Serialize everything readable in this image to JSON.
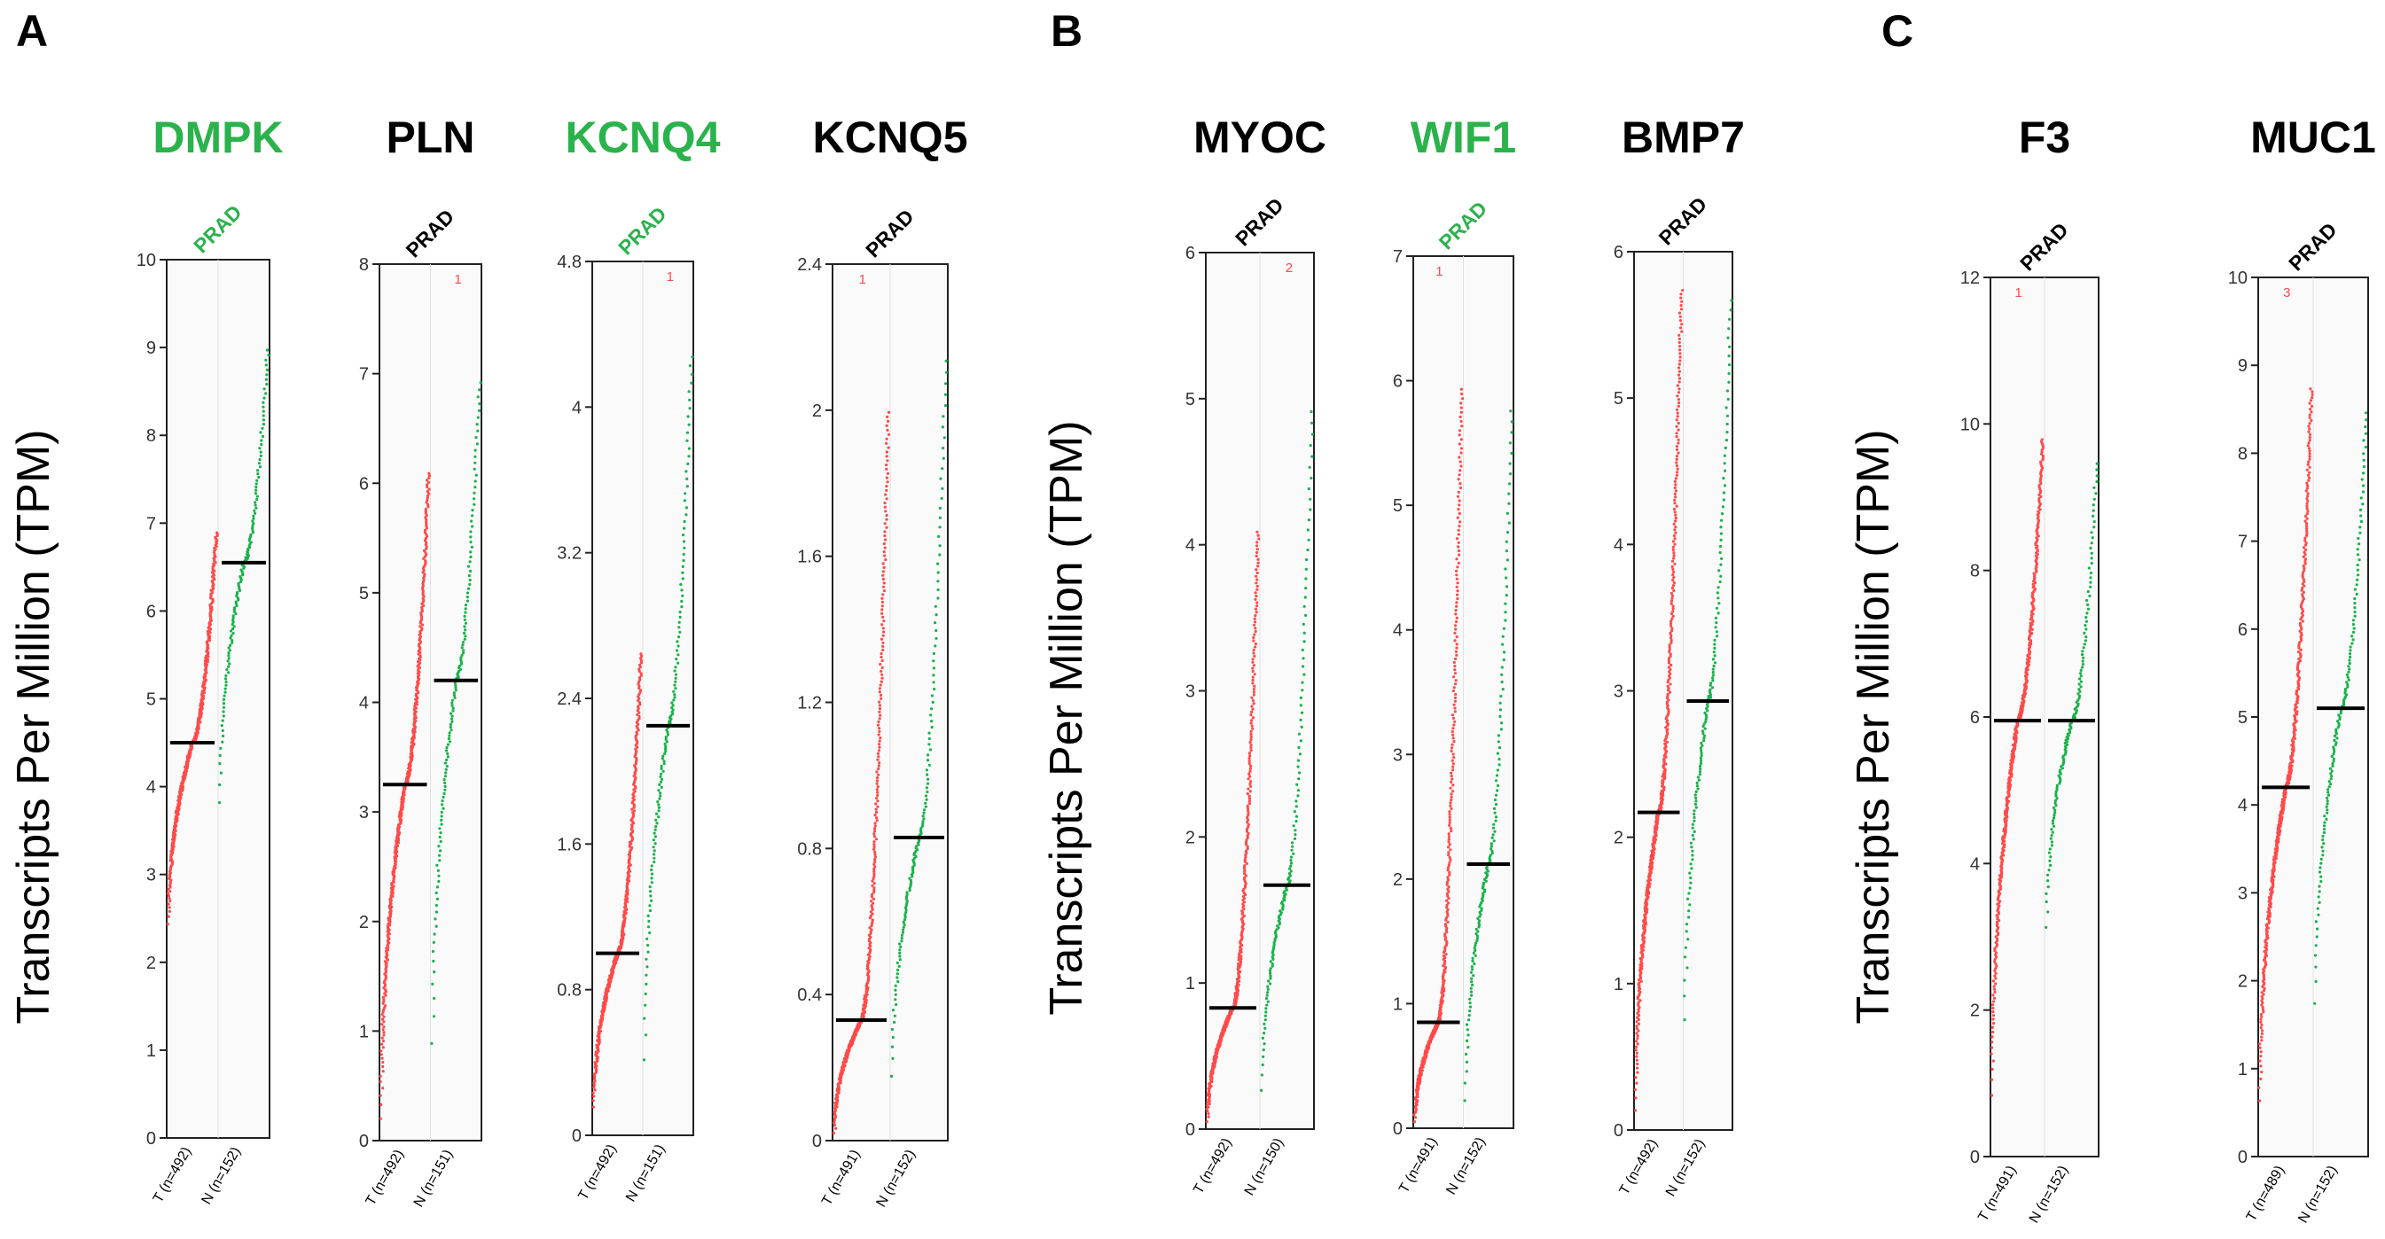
{
  "figure": {
    "panels": [
      {
        "letter": "A",
        "y_axis_label": "Transcripts Per Million (TPM)"
      },
      {
        "letter": "B",
        "y_axis_label": "Transcripts Per Million (TPM)"
      },
      {
        "letter": "C",
        "y_axis_label": "Transcripts Per Million (TPM)"
      }
    ]
  },
  "colors": {
    "tumor": "#ff4a4a",
    "normal": "#19b24b",
    "highlight_gene": "#2bb24c",
    "default_gene": "#000000",
    "median": "#000000"
  },
  "chart_data": [
    {
      "type": "scatter",
      "panel": "A",
      "gene": "DMPK",
      "gene_highlighted": true,
      "cancer": "PRAD",
      "ylim": [
        0,
        10
      ],
      "yticks": [
        "0",
        "1",
        "2",
        "3",
        "4",
        "5",
        "6",
        "7",
        "8",
        "9",
        "10"
      ],
      "groups": [
        "T (n=492)",
        "N (n=152)"
      ],
      "tumor": {
        "n": 492,
        "median": 4.5,
        "min": 2.3,
        "max": 6.9
      },
      "normal": {
        "n": 152,
        "median": 6.55,
        "min": 3.5,
        "max": 9.0
      },
      "outlier_count": ""
    },
    {
      "type": "scatter",
      "panel": "A",
      "gene": "PLN",
      "gene_highlighted": false,
      "cancer": "PRAD",
      "ylim": [
        0,
        8
      ],
      "yticks": [
        "0",
        "1",
        "2",
        "3",
        "4",
        "5",
        "6",
        "7",
        "8"
      ],
      "groups": [
        "T (n=492)",
        "N (n=151)"
      ],
      "tumor": {
        "n": 492,
        "median": 3.25,
        "min": 0.0,
        "max": 6.1
      },
      "normal": {
        "n": 151,
        "median": 4.2,
        "min": 0.5,
        "max": 6.95
      },
      "outlier_count": "1"
    },
    {
      "type": "scatter",
      "panel": "A",
      "gene": "KCNQ4",
      "gene_highlighted": true,
      "cancer": "PRAD",
      "ylim": [
        0,
        4.8
      ],
      "yticks": [
        "0",
        "0.8",
        "1.6",
        "2.4",
        "3.2",
        "4",
        "4.8"
      ],
      "groups": [
        "T (n=492)",
        "N (n=151)"
      ],
      "tumor": {
        "n": 492,
        "median": 1.0,
        "min": 0.1,
        "max": 2.65
      },
      "normal": {
        "n": 151,
        "median": 2.25,
        "min": 0.2,
        "max": 4.3
      },
      "outlier_count": "1"
    },
    {
      "type": "scatter",
      "panel": "A",
      "gene": "KCNQ5",
      "gene_highlighted": false,
      "cancer": "PRAD",
      "ylim": [
        0,
        2.4
      ],
      "yticks": [
        "0",
        "0.4",
        "0.8",
        "1.2",
        "1.6",
        "2",
        "2.4"
      ],
      "groups": [
        "T (n=491)",
        "N (n=152)"
      ],
      "tumor": {
        "n": 491,
        "median": 0.33,
        "min": 0.0,
        "max": 2.0
      },
      "normal": {
        "n": 152,
        "median": 0.83,
        "min": 0.1,
        "max": 2.15
      },
      "outlier_count": "1"
    },
    {
      "type": "scatter",
      "panel": "B",
      "gene": "MYOC",
      "gene_highlighted": false,
      "cancer": "PRAD",
      "ylim": [
        0,
        6
      ],
      "yticks": [
        "0",
        "1",
        "2",
        "3",
        "4",
        "5",
        "6"
      ],
      "groups": [
        "T (n=492)",
        "N (n=150)"
      ],
      "tumor": {
        "n": 492,
        "median": 0.83,
        "min": 0.0,
        "max": 4.1
      },
      "normal": {
        "n": 150,
        "median": 1.67,
        "min": 0.1,
        "max": 4.95
      },
      "outlier_count": "2"
    },
    {
      "type": "scatter",
      "panel": "B",
      "gene": "WIF1",
      "gene_highlighted": true,
      "cancer": "PRAD",
      "ylim": [
        0,
        7
      ],
      "yticks": [
        "0",
        "1",
        "2",
        "3",
        "4",
        "5",
        "6",
        "7"
      ],
      "groups": [
        "T (n=491)",
        "N (n=152)"
      ],
      "tumor": {
        "n": 491,
        "median": 0.85,
        "min": 0.0,
        "max": 5.95
      },
      "normal": {
        "n": 152,
        "median": 2.12,
        "min": 0.0,
        "max": 5.8
      },
      "outlier_count": "1"
    },
    {
      "type": "scatter",
      "panel": "B",
      "gene": "BMP7",
      "gene_highlighted": false,
      "cancer": "PRAD",
      "ylim": [
        0,
        6
      ],
      "yticks": [
        "0",
        "1",
        "2",
        "3",
        "4",
        "5",
        "6"
      ],
      "groups": [
        "T (n=492)",
        "N (n=152)"
      ],
      "tumor": {
        "n": 492,
        "median": 2.17,
        "min": 0.0,
        "max": 5.75
      },
      "normal": {
        "n": 152,
        "median": 2.93,
        "min": 0.5,
        "max": 5.7
      },
      "outlier_count": ""
    },
    {
      "type": "scatter",
      "panel": "C",
      "gene": "F3",
      "gene_highlighted": false,
      "cancer": "PRAD",
      "ylim": [
        0,
        12
      ],
      "yticks": [
        "0",
        "2",
        "4",
        "6",
        "8",
        "10",
        "12"
      ],
      "groups": [
        "T (n=491)",
        "N (n=152)"
      ],
      "tumor": {
        "n": 491,
        "median": 5.95,
        "min": 0.5,
        "max": 9.8
      },
      "normal": {
        "n": 152,
        "median": 5.95,
        "min": 2.8,
        "max": 9.5
      },
      "outlier_count": "1"
    },
    {
      "type": "scatter",
      "panel": "C",
      "gene": "MUC1",
      "gene_highlighted": false,
      "cancer": "PRAD",
      "ylim": [
        0,
        10
      ],
      "yticks": [
        "0",
        "1",
        "2",
        "3",
        "4",
        "5",
        "6",
        "7",
        "8",
        "9",
        "10"
      ],
      "groups": [
        "T (n=489)",
        "N (n=152)"
      ],
      "tumor": {
        "n": 489,
        "median": 4.2,
        "min": 0.4,
        "max": 8.75
      },
      "normal": {
        "n": 152,
        "median": 5.1,
        "min": 1.35,
        "max": 8.5
      },
      "outlier_count": "3"
    }
  ]
}
